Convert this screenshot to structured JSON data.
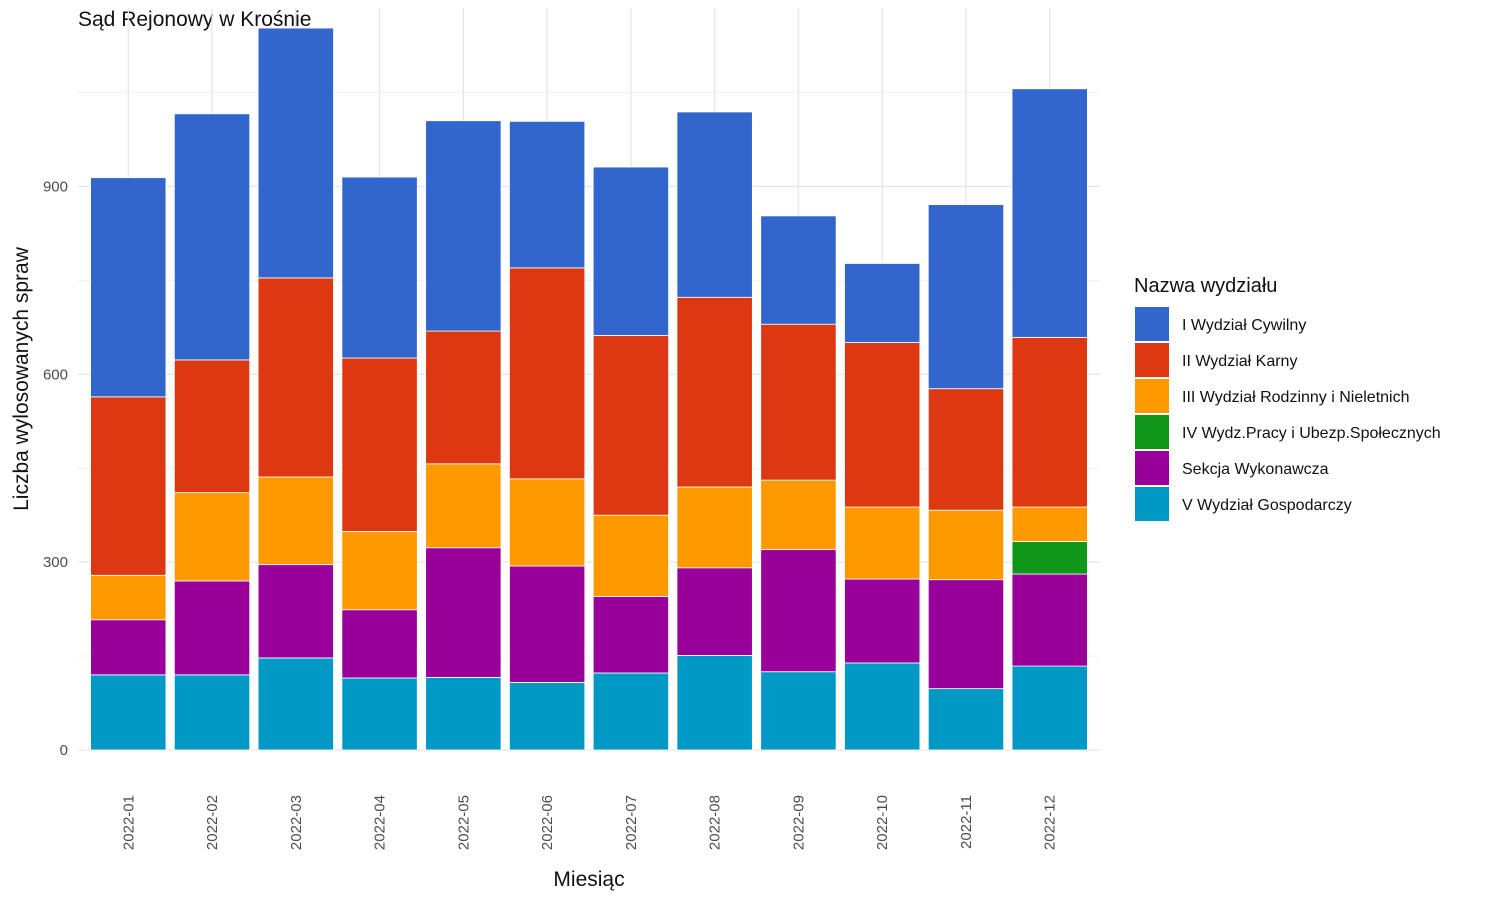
{
  "chart_data": {
    "type": "bar",
    "stacked": true,
    "title": "Sąd Rejonowy w Krośnie",
    "xlabel": "Miesiąc",
    "ylabel": "Liczba wylosowanych spraw",
    "ylim": [
      0,
      1185
    ],
    "yticks": [
      0,
      300,
      600,
      900
    ],
    "grid": true,
    "legend_title": "Nazwa wydziału",
    "legend_position": "right",
    "categories": [
      "2022-01",
      "2022-02",
      "2022-03",
      "2022-04",
      "2022-05",
      "2022-06",
      "2022-07",
      "2022-08",
      "2022-09",
      "2022-10",
      "2022-11",
      "2022-12"
    ],
    "series": [
      {
        "name": "V Wydział Gospodarczy",
        "color": "#0099c6",
        "values": [
          120,
          120,
          147,
          115,
          116,
          108,
          123,
          151,
          125,
          139,
          98,
          134
        ]
      },
      {
        "name": "Sekcja Wykonawcza",
        "color": "#990099",
        "values": [
          88,
          150,
          149,
          109,
          207,
          186,
          122,
          140,
          195,
          134,
          174,
          147
        ]
      },
      {
        "name": "IV Wydz.Pracy i Ubezp.Społecznych",
        "color": "#109618",
        "values": [
          0,
          0,
          0,
          0,
          0,
          0,
          0,
          0,
          0,
          0,
          0,
          52
        ]
      },
      {
        "name": "III Wydział Rodzinny i Nieletnich",
        "color": "#ff9900",
        "values": [
          71,
          141,
          140,
          125,
          134,
          139,
          130,
          129,
          111,
          115,
          111,
          55
        ]
      },
      {
        "name": "II Wydział Karny",
        "color": "#dc3912",
        "values": [
          285,
          212,
          318,
          277,
          212,
          337,
          287,
          303,
          249,
          263,
          194,
          271
        ]
      },
      {
        "name": "I Wydział Cywilny",
        "color": "#3366cc",
        "values": [
          350,
          393,
          399,
          289,
          336,
          234,
          269,
          296,
          173,
          126,
          294,
          397
        ]
      }
    ],
    "legend_order": [
      "I Wydział Cywilny",
      "II Wydział Karny",
      "III Wydział Rodzinny i Nieletnich",
      "IV Wydz.Pracy i Ubezp.Społecznych",
      "Sekcja Wykonawcza",
      "V Wydział Gospodarczy"
    ]
  }
}
